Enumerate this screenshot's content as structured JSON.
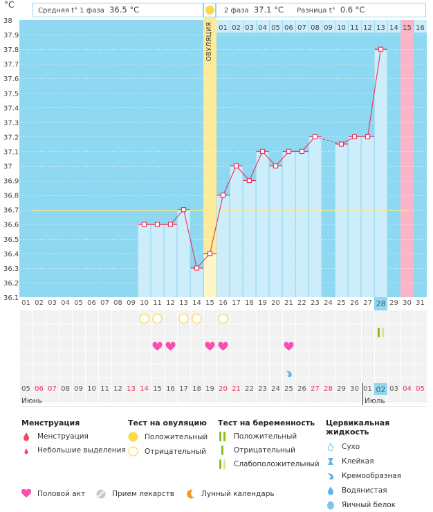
{
  "header": {
    "unit": "°C",
    "phase1_label": "Средняя t° 1 фаза",
    "phase1_value": "36.5 °C",
    "phase2_label": "2 фаза",
    "phase2_value": "37.1 °C",
    "diff_label": "Разница t°",
    "diff_value": "0.6 °C",
    "ovulation_label": "ОВУЛЯЦИЯ"
  },
  "colors": {
    "background": "#8fd8f2",
    "bar": "#cdedfb",
    "ovulation": "#fdeb9a",
    "ovulation_bar": "#fdf6c8",
    "pink": "#fbb5c9",
    "line": "#e8305a",
    "coverline": "#f5e98a",
    "today": "#8fd8f2"
  },
  "chart_data": {
    "type": "line",
    "title": "",
    "ylabel": "°C",
    "ylim": [
      36.1,
      38.0
    ],
    "yticks": [
      "38",
      "37.9",
      "37.8",
      "37.7",
      "37.6",
      "37.5",
      "37.4",
      "37.3",
      "37.2",
      "37.1",
      "37",
      "36.9",
      "36.8",
      "36.7",
      "36.6",
      "36.5",
      "36.4",
      "36.3",
      "36.2",
      "36.1"
    ],
    "cycle_days": [
      "01",
      "02",
      "03",
      "04",
      "05",
      "06",
      "07",
      "08",
      "09",
      "10",
      "11",
      "12",
      "13",
      "14",
      "15",
      "16",
      "17",
      "18",
      "19",
      "20",
      "21",
      "22",
      "23",
      "24",
      "25",
      "26",
      "27",
      "28",
      "29",
      "30",
      "31"
    ],
    "top_days": [
      "",
      "",
      "",
      "",
      "",
      "",
      "",
      "",
      "",
      "",
      "",
      "",
      "",
      "",
      "",
      "01",
      "02",
      "03",
      "04",
      "05",
      "06",
      "07",
      "08",
      "09",
      "10",
      "11",
      "12",
      "13",
      "14",
      "15",
      "16"
    ],
    "calendar_days": [
      "05",
      "06",
      "07",
      "08",
      "09",
      "10",
      "11",
      "12",
      "13",
      "14",
      "15",
      "16",
      "17",
      "18",
      "19",
      "20",
      "21",
      "22",
      "23",
      "24",
      "25",
      "26",
      "27",
      "28",
      "29",
      "30",
      "01",
      "02",
      "03",
      "04",
      "05"
    ],
    "weekend_indices": [
      1,
      2,
      8,
      9,
      15,
      16,
      22,
      23,
      29,
      30
    ],
    "months": [
      {
        "label": "Июнь",
        "start": 0
      },
      {
        "label": "Июль",
        "start": 26
      }
    ],
    "today_index": 27,
    "ovulation_index": 14,
    "pink_top_index": 29,
    "coverline": 36.7,
    "temperatures": [
      null,
      null,
      null,
      null,
      null,
      null,
      null,
      null,
      null,
      36.6,
      36.6,
      36.6,
      36.7,
      36.3,
      36.4,
      36.8,
      37.0,
      36.9,
      37.1,
      37.0,
      37.1,
      37.1,
      37.2,
      null,
      37.15,
      37.2,
      37.2,
      37.8,
      null,
      null,
      null
    ],
    "ovulation_tests_negative": [
      9,
      10,
      12,
      13,
      15
    ],
    "pregnancy_test_weak_positive": [
      27
    ],
    "intercourse": [
      10,
      11,
      14,
      15,
      20
    ],
    "cervical_creamy": [
      20
    ]
  },
  "legend": {
    "menstruation": {
      "title": "Менструация",
      "items": [
        "Менструация",
        "Небольшие выделения"
      ]
    },
    "ovulation_test": {
      "title": "Тест на овуляцию",
      "items": [
        "Положительный",
        "Отрицательный"
      ]
    },
    "pregnancy_test": {
      "title": "Тест на беременность",
      "items": [
        "Положительный",
        "Отрицательный",
        "Слабоположительный"
      ]
    },
    "cervical": {
      "title": "Цервикальная жидкость",
      "items": [
        "Сухо",
        "Клейкая",
        "Кремообразная",
        "Водянистая",
        "Яичный белок"
      ]
    },
    "other": [
      "Половой акт",
      "Прием лекарств",
      "Лунный календарь"
    ]
  }
}
